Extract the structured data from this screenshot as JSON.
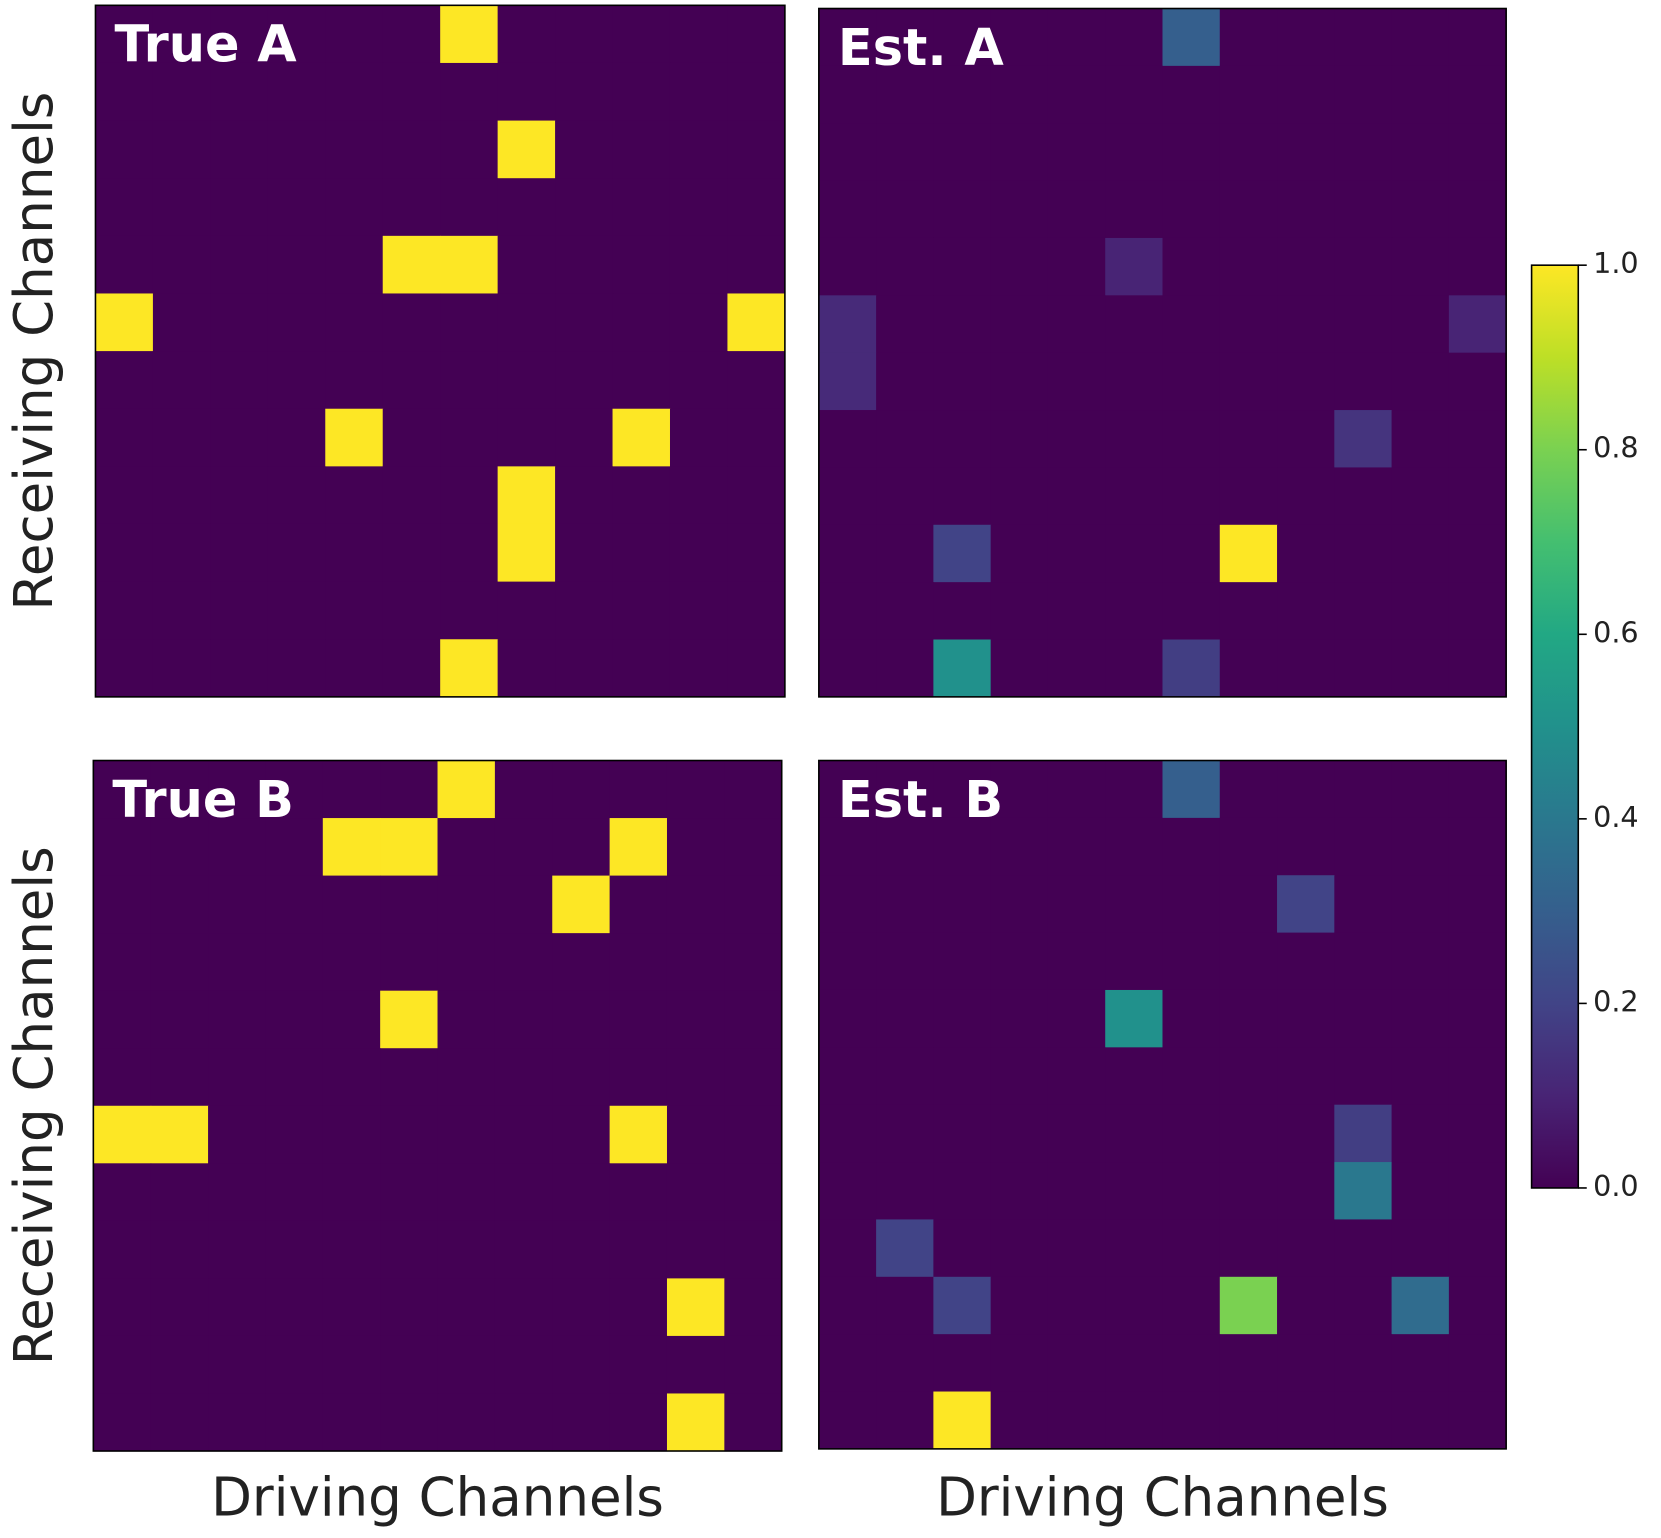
{
  "chart_data": {
    "type": "heatmap",
    "colormap": "viridis",
    "clim": [
      0,
      1
    ],
    "cticks": [
      {
        "value": 0,
        "label": "0.0"
      },
      0.2,
      0.4,
      0.6,
      0.8,
      {
        "value": 1,
        "label": "1.0"
      }
    ],
    "panels": [
      {
        "title": "True A",
        "ylabel": "Receiving Channels",
        "z": [
          [
            0,
            0,
            0,
            0,
            0,
            0,
            1,
            0,
            0,
            0,
            0,
            0
          ],
          [
            0,
            0,
            0,
            0,
            0,
            0,
            0,
            0,
            0,
            0,
            0,
            0
          ],
          [
            0,
            0,
            0,
            0,
            0,
            0,
            0,
            1,
            0,
            0,
            0,
            0
          ],
          [
            0,
            0,
            0,
            0,
            0,
            0,
            0,
            0,
            0,
            0,
            0,
            0
          ],
          [
            0,
            0,
            0,
            0,
            0,
            1,
            1,
            0,
            0,
            0,
            0,
            0
          ],
          [
            1,
            0,
            0,
            0,
            0,
            0,
            0,
            0,
            0,
            0,
            0,
            1
          ],
          [
            0,
            0,
            0,
            0,
            0,
            0,
            0,
            0,
            0,
            0,
            0,
            0
          ],
          [
            0,
            0,
            0,
            0,
            1,
            0,
            0,
            0,
            0,
            1,
            0,
            0
          ],
          [
            0,
            0,
            0,
            0,
            0,
            0,
            0,
            1,
            0,
            0,
            0,
            0
          ],
          [
            0,
            0,
            0,
            0,
            0,
            0,
            0,
            1,
            0,
            0,
            0,
            0
          ],
          [
            0,
            0,
            0,
            0,
            0,
            0,
            0,
            0,
            0,
            0,
            0,
            0
          ],
          [
            0,
            0,
            0,
            0,
            0,
            0,
            1,
            0,
            0,
            0,
            0,
            0
          ]
        ]
      },
      {
        "title": "Est. A",
        "z": [
          [
            0,
            0,
            0,
            0,
            0,
            0,
            0.3,
            0,
            0,
            0,
            0,
            0
          ],
          [
            0,
            0,
            0,
            0,
            0,
            0,
            0,
            0,
            0,
            0,
            0,
            0
          ],
          [
            0,
            0,
            0,
            0,
            0,
            0,
            0,
            0,
            0,
            0,
            0,
            0
          ],
          [
            0,
            0,
            0,
            0,
            0,
            0,
            0,
            0,
            0,
            0,
            0,
            0
          ],
          [
            0,
            0,
            0,
            0,
            0,
            0.1,
            0,
            0,
            0,
            0,
            0,
            0
          ],
          [
            0.12,
            0,
            0,
            0,
            0,
            0,
            0,
            0,
            0,
            0,
            0,
            0.1
          ],
          [
            0.12,
            0,
            0,
            0,
            0,
            0,
            0,
            0,
            0,
            0,
            0,
            0
          ],
          [
            0,
            0,
            0,
            0,
            0,
            0,
            0,
            0,
            0,
            0.15,
            0,
            0
          ],
          [
            0,
            0,
            0,
            0,
            0,
            0,
            0,
            0,
            0,
            0,
            0,
            0
          ],
          [
            0,
            0,
            0.2,
            0,
            0,
            0,
            0,
            1,
            0,
            0,
            0,
            0
          ],
          [
            0,
            0,
            0,
            0,
            0,
            0,
            0,
            0,
            0,
            0,
            0,
            0
          ],
          [
            0,
            0,
            0.5,
            0,
            0,
            0,
            0.18,
            0,
            0,
            0,
            0,
            0
          ]
        ]
      },
      {
        "title": "True B",
        "ylabel": "Receiving Channels",
        "xlabel": "Driving Channels",
        "z": [
          [
            0,
            0,
            0,
            0,
            0,
            0,
            1,
            0,
            0,
            0,
            0,
            0
          ],
          [
            0,
            0,
            0,
            0,
            1,
            1,
            0,
            0,
            0,
            1,
            0,
            0
          ],
          [
            0,
            0,
            0,
            0,
            0,
            0,
            0,
            0,
            1,
            0,
            0,
            0
          ],
          [
            0,
            0,
            0,
            0,
            0,
            0,
            0,
            0,
            0,
            0,
            0,
            0
          ],
          [
            0,
            0,
            0,
            0,
            0,
            1,
            0,
            0,
            0,
            0,
            0,
            0
          ],
          [
            0,
            0,
            0,
            0,
            0,
            0,
            0,
            0,
            0,
            0,
            0,
            0
          ],
          [
            1,
            1,
            0,
            0,
            0,
            0,
            0,
            0,
            0,
            1,
            0,
            0
          ],
          [
            0,
            0,
            0,
            0,
            0,
            0,
            0,
            0,
            0,
            0,
            0,
            0
          ],
          [
            0,
            0,
            0,
            0,
            0,
            0,
            0,
            0,
            0,
            0,
            0,
            0
          ],
          [
            0,
            0,
            0,
            0,
            0,
            0,
            0,
            0,
            0,
            0,
            1,
            0
          ],
          [
            0,
            0,
            0,
            0,
            0,
            0,
            0,
            0,
            0,
            0,
            0,
            0
          ],
          [
            0,
            0,
            0,
            0,
            0,
            0,
            0,
            0,
            0,
            0,
            1,
            0
          ]
        ]
      },
      {
        "title": "Est. B",
        "xlabel": "Driving Channels",
        "z": [
          [
            0,
            0,
            0,
            0,
            0,
            0,
            0.3,
            0,
            0,
            0,
            0,
            0
          ],
          [
            0,
            0,
            0,
            0,
            0,
            0,
            0,
            0,
            0,
            0,
            0,
            0
          ],
          [
            0,
            0,
            0,
            0,
            0,
            0,
            0,
            0,
            0.2,
            0,
            0,
            0
          ],
          [
            0,
            0,
            0,
            0,
            0,
            0,
            0,
            0,
            0,
            0,
            0,
            0
          ],
          [
            0,
            0,
            0,
            0,
            0,
            0.5,
            0,
            0,
            0,
            0,
            0,
            0
          ],
          [
            0,
            0,
            0,
            0,
            0,
            0,
            0,
            0,
            0,
            0,
            0,
            0
          ],
          [
            0,
            0,
            0,
            0,
            0,
            0,
            0,
            0,
            0,
            0.18,
            0,
            0
          ],
          [
            0,
            0,
            0,
            0,
            0,
            0,
            0,
            0,
            0,
            0.4,
            0,
            0
          ],
          [
            0,
            0.2,
            0,
            0,
            0,
            0,
            0,
            0,
            0,
            0,
            0,
            0
          ],
          [
            0,
            0,
            0.2,
            0,
            0,
            0,
            0,
            0.8,
            0,
            0,
            0.35,
            0
          ],
          [
            0,
            0,
            0,
            0,
            0,
            0,
            0,
            0,
            0,
            0,
            0,
            0
          ],
          [
            0,
            0,
            1,
            0,
            0,
            0,
            0,
            0,
            0,
            0,
            0,
            0
          ]
        ]
      }
    ]
  }
}
